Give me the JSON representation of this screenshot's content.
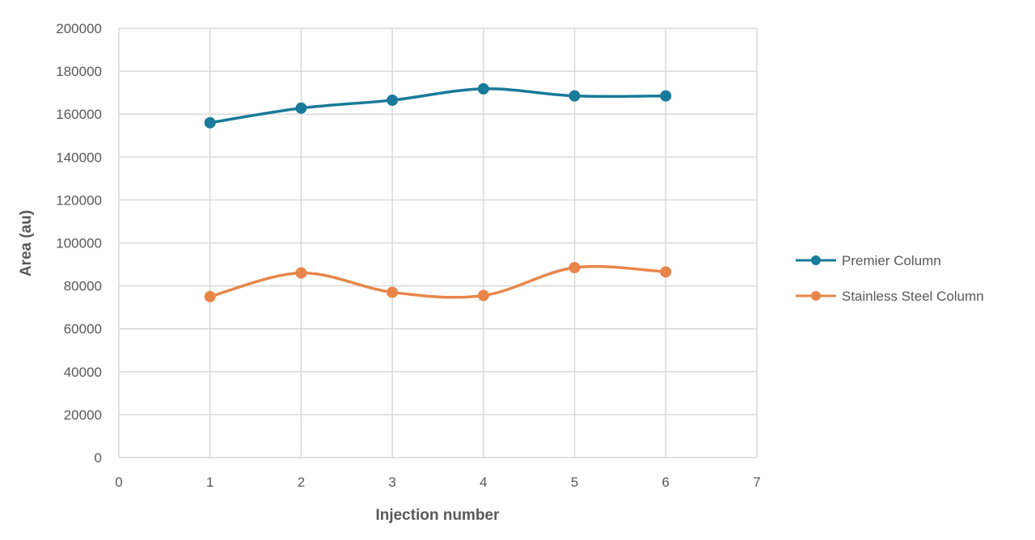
{
  "chart_data": {
    "type": "line",
    "title": "",
    "xlabel": "Injection number",
    "ylabel": "Area (au)",
    "xlim": [
      0,
      7
    ],
    "ylim": [
      0,
      200000
    ],
    "x_ticks": [
      "0",
      "1",
      "2",
      "3",
      "4",
      "5",
      "6",
      "7"
    ],
    "y_ticks": [
      "0",
      "20000",
      "40000",
      "60000",
      "80000",
      "100000",
      "120000",
      "140000",
      "160000",
      "180000",
      "200000"
    ],
    "grid": true,
    "smoothed": true,
    "legend_position": "right",
    "x": [
      1,
      2,
      3,
      4,
      5,
      6
    ],
    "series": [
      {
        "name": "Premier Column",
        "color": "#1a7a9a",
        "values": [
          156000,
          162800,
          166500,
          171800,
          168500,
          168500
        ]
      },
      {
        "name": "Stainless Steel Column",
        "color": "#e8864a",
        "values": [
          75000,
          86000,
          77000,
          75500,
          88500,
          86500
        ]
      }
    ]
  }
}
